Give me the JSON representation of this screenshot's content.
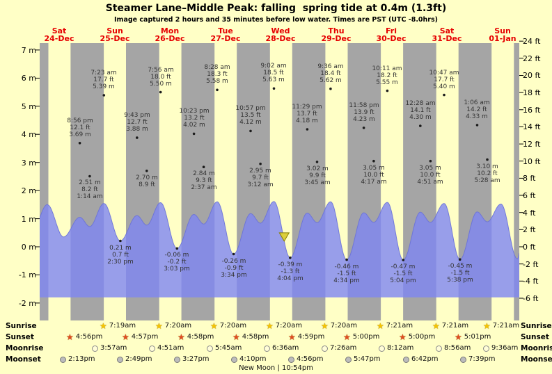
{
  "title": "Steamer Lane–Middle Peak: falling  spring tide at 0.4m (1.3ft)",
  "subtitle": "Image captured 2 hours and 35 minutes before low water. Times are PST (UTC -8.0hrs)",
  "new_moon_text": "New Moon | 10:54pm",
  "side_labels": {
    "sunrise": "Sunrise",
    "sunset": "Sunset",
    "moonrise": "Moonrise",
    "moonset": "Moonset"
  },
  "colors": {
    "background": "#ffffc6",
    "night_band": "#a5a5a5",
    "tide_fill": "#7e86f2",
    "tide_line": "#6a72d8",
    "day_label": "#e60000",
    "annotation_text": "#333333",
    "marker_fill": "#dccf3a",
    "marker_stroke": "#8a8200",
    "sunrise_star": "#f5c400",
    "sunset_star": "#e04a20",
    "moonrise_fill": "#fffdd8",
    "moonset_fill": "#bcbcbc"
  },
  "chart_data": {
    "type": "area",
    "title": "Steamer Lane–Middle Peak: falling  spring tide at 0.4m (1.3ft)",
    "ylim_m": [
      -2.6,
      7.25
    ],
    "grid": false,
    "baseline_m": -1.8,
    "days": [
      {
        "dow": "Sat",
        "date": "24-Dec"
      },
      {
        "dow": "Sun",
        "date": "25-Dec"
      },
      {
        "dow": "Mon",
        "date": "26-Dec"
      },
      {
        "dow": "Tue",
        "date": "27-Dec"
      },
      {
        "dow": "Wed",
        "date": "28-Dec"
      },
      {
        "dow": "Thu",
        "date": "29-Dec"
      },
      {
        "dow": "Fri",
        "date": "30-Dec"
      },
      {
        "dow": "Sat",
        "date": "31-Dec"
      },
      {
        "dow": "Sun",
        "date": "01-Jan"
      }
    ],
    "y_axis_left": {
      "unit": "m",
      "ticks": [
        7,
        6,
        5,
        4,
        3,
        2,
        1,
        0,
        -1,
        -2
      ]
    },
    "y_axis_right": {
      "unit": "ft",
      "ticks": [
        24,
        22,
        20,
        18,
        16,
        14,
        12,
        10,
        8,
        6,
        4,
        2,
        0,
        -2,
        -4,
        -6
      ]
    },
    "tide_marks": [
      {
        "name": "morning-high-tides",
        "label_position": "above",
        "points": [
          {
            "t": 31.38,
            "m": 5.39,
            "lines": [
              "7:23 am",
              "17.7 ft",
              "5.39 m"
            ]
          },
          {
            "t": 55.93,
            "m": 5.5,
            "lines": [
              "7:56 am",
              "18.0 ft",
              "5.50 m"
            ]
          },
          {
            "t": 80.47,
            "m": 5.58,
            "lines": [
              "8:28 am",
              "18.3 ft",
              "5.58 m"
            ]
          },
          {
            "t": 105.03,
            "m": 5.63,
            "lines": [
              "9:02 am",
              "18.5 ft",
              "5.63 m"
            ]
          },
          {
            "t": 129.6,
            "m": 5.62,
            "lines": [
              "9:36 am",
              "18.4 ft",
              "5.62 m"
            ]
          },
          {
            "t": 154.18,
            "m": 5.55,
            "lines": [
              "10:11 am",
              "18.2 ft",
              "5.55 m"
            ]
          },
          {
            "t": 178.78,
            "m": 5.4,
            "lines": [
              "10:47 am",
              "17.7 ft",
              "5.40 m"
            ]
          }
        ]
      },
      {
        "name": "evening-high-tides",
        "label_position": "above",
        "points": [
          {
            "t": 20.93,
            "m": 3.69,
            "lines": [
              "8:56 pm",
              "12.1 ft",
              "3.69 m"
            ]
          },
          {
            "t": 45.72,
            "m": 3.88,
            "lines": [
              "9:43 pm",
              "12.7 ft",
              "3.88 m"
            ]
          },
          {
            "t": 70.38,
            "m": 4.02,
            "lines": [
              "10:23 pm",
              "13.2 ft",
              "4.02 m"
            ]
          },
          {
            "t": 94.95,
            "m": 4.12,
            "lines": [
              "10:57 pm",
              "13.5 ft",
              "4.12 m"
            ]
          },
          {
            "t": 119.48,
            "m": 4.18,
            "lines": [
              "11:29 pm",
              "13.7 ft",
              "4.18 m"
            ]
          },
          {
            "t": 143.97,
            "m": 4.23,
            "lines": [
              "11:58 pm",
              "13.9 ft",
              "4.23 m"
            ]
          },
          {
            "t": 168.47,
            "m": 4.3,
            "lines": [
              "12:28 am",
              "14.1 ft",
              "4.30 m"
            ]
          },
          {
            "t": 193.1,
            "m": 4.33,
            "lines": [
              "1:06 am",
              "14.2 ft",
              "4.33 m"
            ]
          }
        ]
      },
      {
        "name": "overnight-high-tides",
        "label_position": "below",
        "points": [
          {
            "t": 25.23,
            "m": 2.51,
            "lines": [
              "2.51 m",
              "8.2 ft",
              "1:14 am"
            ]
          },
          {
            "t": 49.95,
            "m": 2.7,
            "lines": [
              "2.70 m",
              "8.9 ft"
            ]
          },
          {
            "t": 74.62,
            "m": 2.84,
            "lines": [
              "2.84 m",
              "9.3 ft",
              "2:37 am"
            ]
          },
          {
            "t": 99.2,
            "m": 2.95,
            "lines": [
              "2.95 m",
              "9.7 ft",
              "3:12 am"
            ]
          },
          {
            "t": 123.75,
            "m": 3.02,
            "lines": [
              "3.02 m",
              "9.9 ft",
              "3:45 am"
            ]
          },
          {
            "t": 148.28,
            "m": 3.05,
            "lines": [
              "3.05 m",
              "10.0 ft",
              "4:17 am"
            ]
          },
          {
            "t": 172.85,
            "m": 3.05,
            "lines": [
              "3.05 m",
              "10.0 ft",
              "4:51 am"
            ]
          },
          {
            "t": 197.47,
            "m": 3.1,
            "lines": [
              "3.10 m",
              "10.2 ft",
              "5:28 am"
            ]
          }
        ]
      },
      {
        "name": "low-tides",
        "label_position": "below",
        "points": [
          {
            "t": 38.5,
            "m": 0.21,
            "lines": [
              "0.21 m",
              "0.7 ft",
              "2:30 pm"
            ]
          },
          {
            "t": 63.05,
            "m": -0.06,
            "lines": [
              "-0.06 m",
              "-0.2 ft",
              "3:03 pm"
            ]
          },
          {
            "t": 87.57,
            "m": -0.26,
            "lines": [
              "-0.26 m",
              "-0.9 ft",
              "3:34 pm"
            ]
          },
          {
            "t": 112.07,
            "m": -0.39,
            "lines": [
              "-0.39 m",
              "-1.3 ft",
              "4:04 pm"
            ]
          },
          {
            "t": 136.57,
            "m": -0.46,
            "lines": [
              "-0.46 m",
              "-1.5 ft",
              "4:34 pm"
            ]
          },
          {
            "t": 161.07,
            "m": -0.47,
            "lines": [
              "-0.47 m",
              "-1.5 ft",
              "5:04 pm"
            ]
          },
          {
            "t": 185.63,
            "m": -0.45,
            "lines": [
              "-0.45 m",
              "-1.5 ft",
              "5:38 pm"
            ]
          }
        ]
      }
    ],
    "current_time_marker": {
      "t": 109.5,
      "m": 0.2
    },
    "curve": [
      [
        0.7,
        0.65
      ],
      [
        6.83,
        1.5
      ],
      [
        13.9,
        0.35
      ],
      [
        20.93,
        1.05
      ],
      [
        25.23,
        0.72
      ],
      [
        31.38,
        1.54
      ],
      [
        38.5,
        0.21
      ],
      [
        45.72,
        1.11
      ],
      [
        49.95,
        0.77
      ],
      [
        55.93,
        1.57
      ],
      [
        63.05,
        -0.06
      ],
      [
        70.38,
        1.15
      ],
      [
        74.62,
        0.81
      ],
      [
        80.47,
        1.6
      ],
      [
        87.57,
        -0.26
      ],
      [
        94.95,
        1.18
      ],
      [
        99.2,
        0.84
      ],
      [
        105.03,
        1.61
      ],
      [
        112.07,
        -0.39
      ],
      [
        119.48,
        1.2
      ],
      [
        123.75,
        0.86
      ],
      [
        129.6,
        1.6
      ],
      [
        136.57,
        -0.46
      ],
      [
        143.97,
        1.21
      ],
      [
        148.28,
        0.87
      ],
      [
        154.18,
        1.58
      ],
      [
        161.07,
        -0.47
      ],
      [
        168.47,
        1.23
      ],
      [
        172.85,
        0.87
      ],
      [
        178.78,
        1.54
      ],
      [
        185.63,
        -0.45
      ],
      [
        193.1,
        1.24
      ],
      [
        197.47,
        0.89
      ],
      [
        203.4,
        1.52
      ],
      [
        210.5,
        -0.43
      ],
      [
        214.0,
        1.2
      ]
    ],
    "sun_moon": {
      "sunrise": [
        {
          "t": 31.317,
          "label": "7:19am"
        },
        {
          "t": 55.333,
          "label": "7:20am"
        },
        {
          "t": 79.333,
          "label": "7:20am"
        },
        {
          "t": 103.333,
          "label": "7:20am"
        },
        {
          "t": 127.333,
          "label": "7:20am"
        },
        {
          "t": 151.35,
          "label": "7:21am"
        },
        {
          "t": 175.35,
          "label": "7:21am"
        },
        {
          "t": 199.35,
          "label": "7:21am"
        }
      ],
      "sunset": [
        {
          "t": 16.933,
          "label": "4:56pm"
        },
        {
          "t": 40.95,
          "label": "4:57pm"
        },
        {
          "t": 64.967,
          "label": "4:58pm"
        },
        {
          "t": 88.967,
          "label": "4:58pm"
        },
        {
          "t": 112.983,
          "label": "4:59pm"
        },
        {
          "t": 137.0,
          "label": "5:00pm"
        },
        {
          "t": 161.0,
          "label": "5:00pm"
        },
        {
          "t": 185.017,
          "label": "5:01pm"
        }
      ],
      "moonrise": [
        {
          "t": 27.95,
          "label": "3:57am"
        },
        {
          "t": 52.85,
          "label": "4:51am"
        },
        {
          "t": 77.75,
          "label": "5:45am"
        },
        {
          "t": 102.6,
          "label": "6:36am"
        },
        {
          "t": 127.433,
          "label": "7:26am"
        },
        {
          "t": 152.2,
          "label": "8:12am"
        },
        {
          "t": 176.933,
          "label": "8:56am"
        },
        {
          "t": 201.6,
          "label": "9:36am"
        }
      ],
      "moonset": [
        {
          "t": 14.217,
          "label": "2:13pm"
        },
        {
          "t": 38.817,
          "label": "2:49pm"
        },
        {
          "t": 63.45,
          "label": "3:27pm"
        },
        {
          "t": 88.167,
          "label": "4:10pm"
        },
        {
          "t": 112.933,
          "label": "4:56pm"
        },
        {
          "t": 137.783,
          "label": "5:47pm"
        },
        {
          "t": 162.7,
          "label": "6:42pm"
        },
        {
          "t": 187.65,
          "label": "7:39pm"
        }
      ]
    }
  }
}
